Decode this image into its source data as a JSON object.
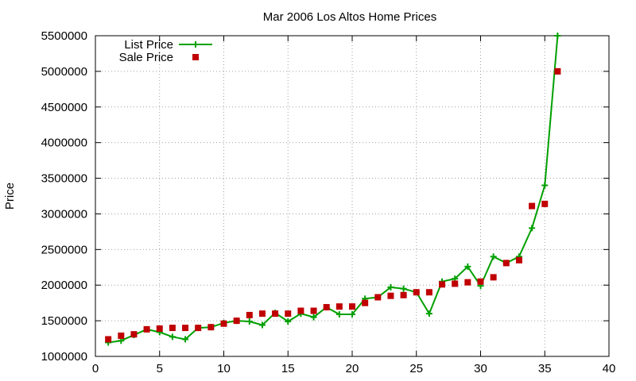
{
  "chart_data": {
    "type": "line",
    "title": "Mar 2006 Los Altos Home Prices",
    "xlabel": "",
    "ylabel": "Price",
    "xlim": [
      0,
      40
    ],
    "ylim": [
      1000000,
      5500000
    ],
    "x_ticks": [
      "0",
      "5",
      "10",
      "15",
      "20",
      "25",
      "30",
      "35",
      "40"
    ],
    "y_ticks": [
      "1000000",
      "1500000",
      "2000000",
      "2500000",
      "3000000",
      "3500000",
      "4000000",
      "4500000",
      "5000000",
      "5500000"
    ],
    "grid": true,
    "legend_position": "top-left",
    "series": [
      {
        "name": "List Price",
        "style": "line-with-plus-markers",
        "color": "#00a000",
        "x": [
          1,
          2,
          3,
          4,
          5,
          6,
          7,
          8,
          9,
          10,
          11,
          12,
          13,
          14,
          15,
          16,
          17,
          18,
          19,
          20,
          21,
          22,
          23,
          24,
          25,
          26,
          27,
          28,
          29,
          30,
          31,
          32,
          33,
          34,
          35,
          36
        ],
        "values": [
          1195000,
          1220000,
          1300000,
          1380000,
          1340000,
          1275000,
          1240000,
          1400000,
          1410000,
          1470000,
          1500000,
          1490000,
          1440000,
          1610000,
          1490000,
          1600000,
          1550000,
          1690000,
          1590000,
          1590000,
          1810000,
          1830000,
          1970000,
          1950000,
          1900000,
          1600000,
          2050000,
          2090000,
          2260000,
          1990000,
          2400000,
          2310000,
          2400000,
          2800000,
          3400000,
          5500000
        ]
      },
      {
        "name": "Sale Price",
        "style": "square-markers",
        "color": "#c00000",
        "x": [
          1,
          2,
          3,
          4,
          5,
          6,
          7,
          8,
          9,
          10,
          11,
          12,
          13,
          14,
          15,
          16,
          17,
          18,
          19,
          20,
          21,
          22,
          23,
          24,
          25,
          26,
          27,
          28,
          29,
          30,
          31,
          32,
          33,
          34,
          35,
          36
        ],
        "values": [
          1240000,
          1290000,
          1310000,
          1380000,
          1390000,
          1400000,
          1400000,
          1400000,
          1410000,
          1460000,
          1500000,
          1580000,
          1600000,
          1600000,
          1600000,
          1640000,
          1640000,
          1690000,
          1700000,
          1700000,
          1750000,
          1830000,
          1850000,
          1860000,
          1900000,
          1900000,
          2010000,
          2020000,
          2040000,
          2050000,
          2110000,
          2310000,
          2350000,
          3110000,
          3140000,
          5000000
        ]
      }
    ]
  }
}
